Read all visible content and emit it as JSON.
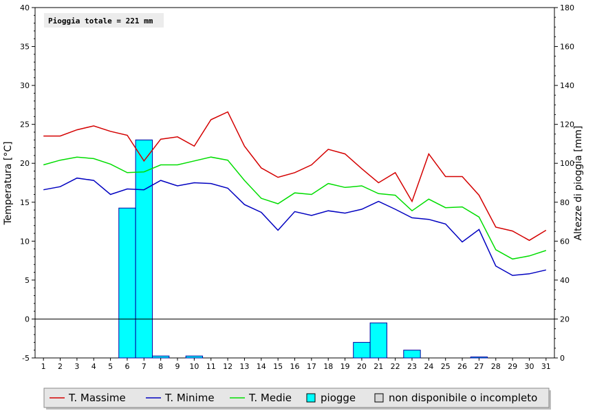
{
  "chart_data": {
    "type": "bar+line",
    "annotation": "Pioggia totale = 221 mm",
    "ylabel_left": "Temperatura [°C]",
    "ylabel_right": "Altezze di pioggia [mm]",
    "ylim_left": [
      -5,
      40
    ],
    "ylim_right": [
      0,
      180
    ],
    "yticks_left": [
      -5,
      0,
      5,
      10,
      15,
      20,
      25,
      30,
      35,
      40
    ],
    "yticks_right": [
      0,
      20,
      40,
      60,
      80,
      100,
      120,
      140,
      160,
      180
    ],
    "x": [
      1,
      2,
      3,
      4,
      5,
      6,
      7,
      8,
      9,
      10,
      11,
      12,
      13,
      14,
      15,
      16,
      17,
      18,
      19,
      20,
      21,
      22,
      23,
      24,
      25,
      26,
      27,
      28,
      29,
      30,
      31
    ],
    "series": [
      {
        "name": "T. Massime",
        "type": "line",
        "color": "#d40000",
        "values": [
          23.5,
          23.5,
          24.3,
          24.8,
          24.1,
          23.6,
          20.3,
          23.1,
          23.4,
          22.2,
          25.6,
          26.6,
          22.2,
          19.4,
          18.2,
          18.8,
          19.8,
          21.8,
          21.2,
          19.3,
          17.5,
          18.8,
          15.1,
          21.2,
          18.3,
          18.3,
          15.9,
          11.8,
          11.3,
          10.1,
          11.4
        ]
      },
      {
        "name": "T. Minime",
        "type": "line",
        "color": "#0000c0",
        "values": [
          16.6,
          17.0,
          18.1,
          17.8,
          16.0,
          16.7,
          16.6,
          17.8,
          17.1,
          17.5,
          17.4,
          16.8,
          14.7,
          13.7,
          11.4,
          13.8,
          13.3,
          13.9,
          13.6,
          14.1,
          15.1,
          14.1,
          13.0,
          12.8,
          12.2,
          9.9,
          11.5,
          6.8,
          5.6,
          5.8,
          6.3
        ]
      },
      {
        "name": "T. Medie",
        "type": "line",
        "color": "#00dd00",
        "values": [
          19.8,
          20.4,
          20.8,
          20.6,
          19.9,
          18.8,
          18.9,
          19.8,
          19.8,
          20.3,
          20.8,
          20.4,
          17.8,
          15.5,
          14.8,
          16.2,
          16.0,
          17.4,
          16.9,
          17.1,
          16.1,
          15.9,
          13.9,
          15.4,
          14.3,
          14.4,
          13.1,
          8.9,
          7.7,
          8.1,
          8.8
        ]
      },
      {
        "name": "piogge",
        "type": "bar",
        "color": "#00ffff",
        "axis": "right",
        "values": [
          0,
          0,
          0,
          0,
          0,
          77,
          112,
          1,
          0,
          1,
          0,
          0,
          0,
          0,
          0,
          0,
          0,
          0,
          0,
          8,
          18,
          0,
          4,
          0,
          0,
          0,
          0.5,
          0,
          0,
          0,
          0
        ]
      }
    ],
    "legend": {
      "placement": "bottom",
      "items": [
        "T. Massime",
        "T. Minime",
        "T. Medie",
        "piogge",
        "non disponibile o incompleto"
      ],
      "unavailable_color": "#d8d8d8"
    },
    "zero_line": true,
    "grid": false
  }
}
